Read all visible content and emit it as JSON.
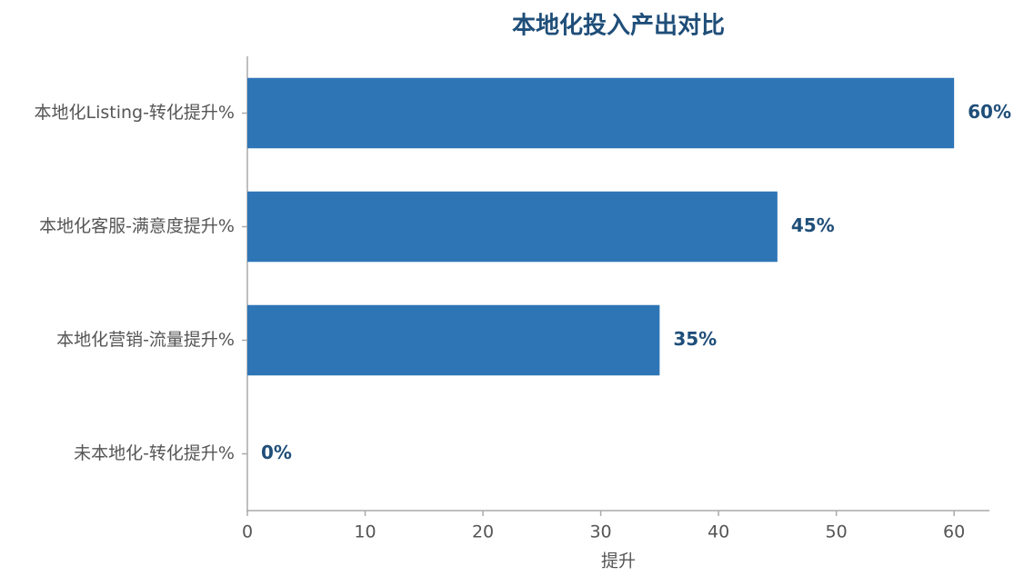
{
  "chart_data": {
    "type": "barh",
    "title": "本地化投入产出对比",
    "categories": [
      "本地化Listing-转化提升%",
      "本地化客服-满意度提升%",
      "本地化营销-流量提升%",
      "未本地化-转化提升%"
    ],
    "values": [
      60,
      45,
      35,
      0
    ],
    "value_labels": [
      "60%",
      "45%",
      "35%",
      "0%"
    ],
    "color": "#2e75b6",
    "xlabel": "提升",
    "xlim": [
      0,
      63
    ],
    "xticks": [
      0,
      10,
      20,
      30,
      40,
      50,
      60
    ],
    "grid": false
  }
}
